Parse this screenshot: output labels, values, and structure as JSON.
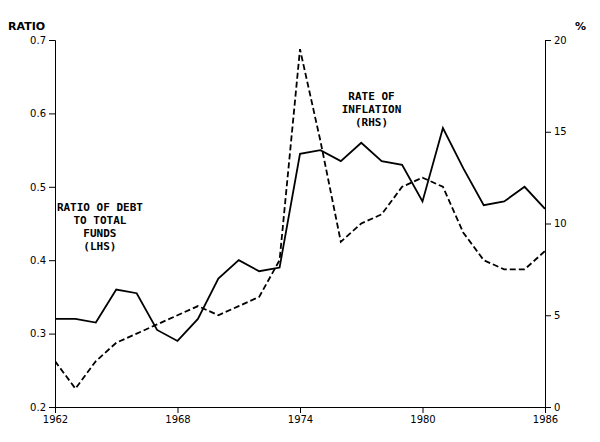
{
  "chart_data": {
    "type": "line",
    "ylabel": "RATIO",
    "y2label": "%",
    "annotations": [
      "RATIO OF DEBT\nTO TOTAL\nFUNDS\n(LHS)",
      "RATE OF\nINFLATION\n(RHS)"
    ],
    "x": [
      1962,
      1963,
      1964,
      1965,
      1966,
      1967,
      1968,
      1969,
      1970,
      1971,
      1972,
      1973,
      1974,
      1975,
      1976,
      1977,
      1978,
      1979,
      1980,
      1981,
      1982,
      1983,
      1984,
      1985,
      1986
    ],
    "xlim": [
      1962,
      1986
    ],
    "xticks": [
      1962,
      1968,
      1974,
      1980,
      1986
    ],
    "ylim": [
      0.2,
      0.7
    ],
    "yticks": [
      0.2,
      0.3,
      0.4,
      0.5,
      0.6,
      0.7
    ],
    "y2lim": [
      0,
      20
    ],
    "y2ticks": [
      0,
      5,
      10,
      15,
      20
    ],
    "series": [
      {
        "color": "#000000",
        "line_style": "solid",
        "values": [
          0.32,
          0.32,
          0.315,
          0.36,
          0.355,
          0.305,
          0.29,
          0.32,
          0.375,
          0.4,
          0.385,
          0.39,
          0.545,
          0.55,
          0.535,
          0.56,
          0.535,
          0.53,
          0.48,
          0.58,
          0.525,
          0.475,
          0.48,
          0.5,
          0.47
        ]
      },
      {
        "color": "#000000",
        "line_style": "dashed",
        "axis": "y2",
        "values": [
          2.5,
          1.0,
          2.5,
          3.5,
          4.0,
          4.5,
          5.0,
          5.5,
          5.0,
          5.5,
          6.0,
          8.0,
          19.5,
          14.5,
          9.0,
          10.0,
          10.5,
          12.0,
          12.5,
          12.0,
          9.5,
          8.0,
          7.5,
          7.5,
          8.5
        ]
      }
    ]
  }
}
